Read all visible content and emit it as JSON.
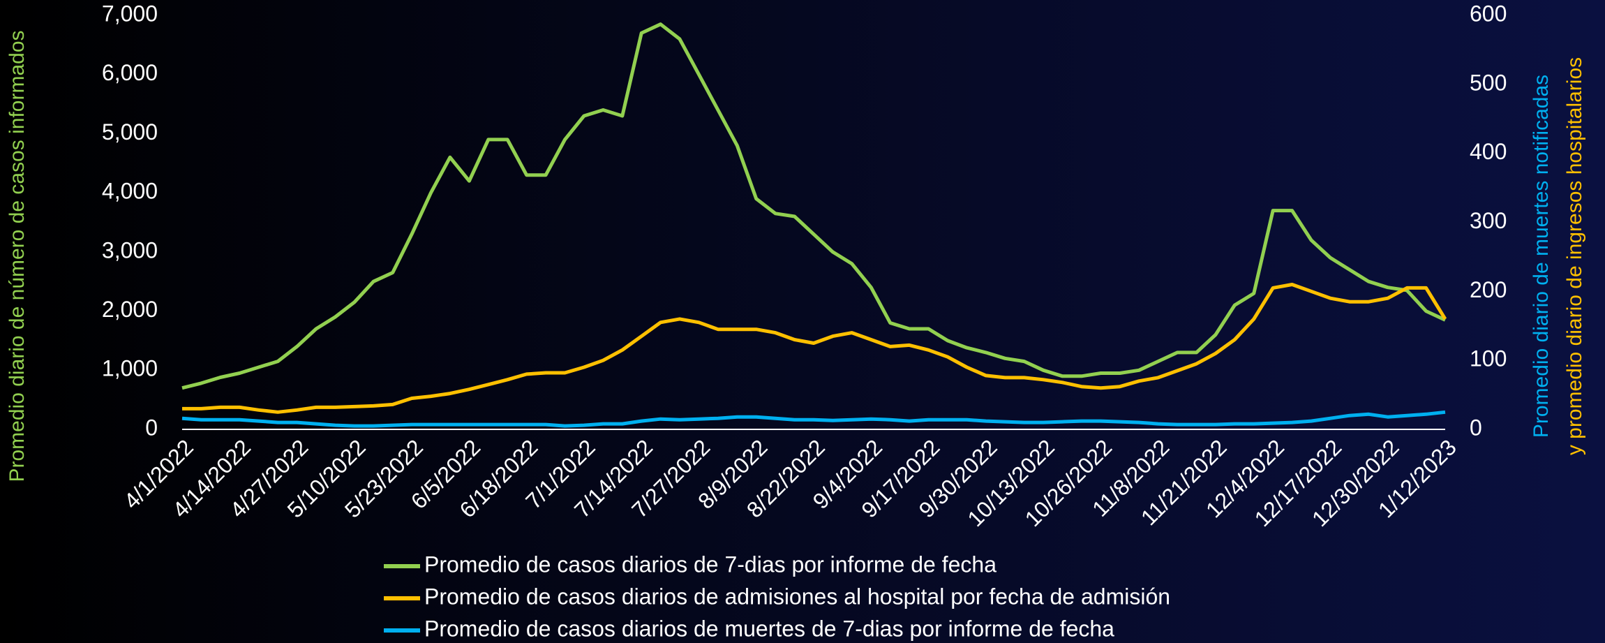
{
  "chart_data": {
    "type": "line",
    "y_label": "Promedio diario de número de casos informados",
    "y2_label": [
      "Promedio diario de muertes notificadas",
      "y promedio diario de ingresos hospitalarios"
    ],
    "categories": [
      "4/1/2022",
      null,
      null,
      "4/14/2022",
      null,
      null,
      "4/27/2022",
      null,
      null,
      "5/10/2022",
      null,
      null,
      "5/23/2022",
      null,
      null,
      "6/5/2022",
      null,
      null,
      "6/18/2022",
      null,
      null,
      "7/1/2022",
      null,
      null,
      "7/14/2022",
      null,
      null,
      "7/27/2022",
      null,
      null,
      "8/9/2022",
      null,
      null,
      "8/22/2022",
      null,
      null,
      "9/4/2022",
      null,
      null,
      "9/17/2022",
      null,
      null,
      "9/30/2022",
      null,
      null,
      "10/13/2022",
      null,
      null,
      "10/26/2022",
      null,
      null,
      "11/8/2022",
      null,
      null,
      "11/21/2022",
      null,
      null,
      "12/4/2022",
      null,
      null,
      "12/17/2022",
      null,
      null,
      "12/30/2022",
      null,
      null,
      "1/12/2023"
    ],
    "series": [
      {
        "name": "Promedio de casos diarios de 7-dias por informe de fecha",
        "color": "#92d050",
        "axis": "y",
        "values": [
          700,
          780,
          880,
          950,
          1050,
          1150,
          1400,
          1700,
          1900,
          2150,
          2500,
          2650,
          3300,
          4000,
          4600,
          4200,
          4900,
          4900,
          4300,
          4300,
          4900,
          5300,
          5400,
          5300,
          6700,
          6850,
          6600,
          6000,
          5400,
          4800,
          3900,
          3650,
          3600,
          3300,
          3000,
          2800,
          2400,
          1800,
          1700,
          1700,
          1500,
          1380,
          1300,
          1200,
          1150,
          1000,
          900,
          900,
          950,
          950,
          1000,
          1150,
          1300,
          1300,
          1600,
          2100,
          2300,
          3700,
          3700,
          3200,
          2900,
          2700,
          2500,
          2400,
          2350,
          2000,
          1850
        ]
      },
      {
        "name": "Promedio de casos diarios de admisiones al hospital por fecha de admisión",
        "color": "#ffc000",
        "axis": "y2",
        "values": [
          30,
          30,
          32,
          32,
          28,
          25,
          28,
          32,
          32,
          33,
          34,
          36,
          45,
          48,
          52,
          58,
          65,
          72,
          80,
          82,
          82,
          90,
          100,
          115,
          135,
          155,
          160,
          155,
          145,
          145,
          145,
          140,
          130,
          125,
          135,
          140,
          130,
          120,
          122,
          115,
          105,
          90,
          78,
          75,
          75,
          72,
          68,
          62,
          60,
          62,
          70,
          75,
          85,
          95,
          110,
          130,
          160,
          205,
          210,
          200,
          190,
          185,
          185,
          190,
          205,
          205,
          160
        ]
      },
      {
        "name": "Promedio de casos diarios de muertes de 7-dias por informe de fecha",
        "color": "#00b0f0",
        "axis": "y2",
        "values": [
          16,
          14,
          14,
          14,
          12,
          10,
          10,
          8,
          6,
          5,
          5,
          6,
          7,
          7,
          7,
          7,
          7,
          7,
          7,
          7,
          5,
          6,
          8,
          8,
          12,
          15,
          14,
          15,
          16,
          18,
          18,
          16,
          14,
          14,
          13,
          14,
          15,
          14,
          12,
          14,
          14,
          14,
          12,
          11,
          10,
          10,
          11,
          12,
          12,
          11,
          10,
          8,
          7,
          7,
          7,
          8,
          8,
          9,
          10,
          12,
          16,
          20,
          22,
          18,
          20,
          22,
          25
        ]
      }
    ],
    "ylim": [
      0,
      7000
    ],
    "yticks": [
      0,
      {
        "value": 1000,
        "label": "1,000"
      },
      {
        "value": 2000,
        "label": "2,000"
      },
      {
        "value": 3000,
        "label": "3,000"
      },
      {
        "value": 4000,
        "label": "4,000"
      },
      {
        "value": 5000,
        "label": "5,000"
      },
      {
        "value": 6000,
        "label": "6,000"
      },
      {
        "value": 7000,
        "label": "7,000"
      }
    ],
    "y2lim": [
      0,
      600
    ],
    "y2ticks": [
      0,
      100,
      200,
      300,
      400,
      500,
      600
    ],
    "grid": false,
    "legend": "bottom"
  }
}
